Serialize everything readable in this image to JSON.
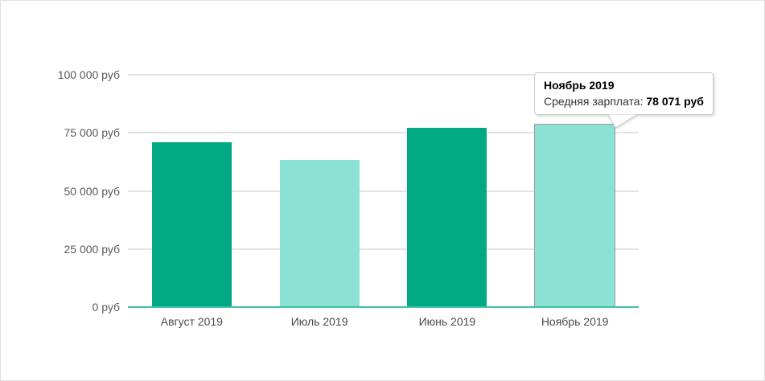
{
  "chart_data": {
    "type": "bar",
    "categories": [
      "Август 2019",
      "Июль 2019",
      "Июнь 2019",
      "Ноябрь 2019"
    ],
    "values": [
      70900,
      63300,
      77200,
      78071
    ],
    "title": "",
    "xlabel": "",
    "ylabel": "",
    "ylim": [
      0,
      100000
    ],
    "y_ticks": [
      "0 руб",
      "25 000 руб",
      "50 000 руб",
      "75 000 руб",
      "100 000 руб"
    ],
    "bar_colors": [
      "#00a884",
      "#8ae2d4",
      "#00a884",
      "#8ae2d4"
    ],
    "highlighted_index": 3,
    "grid": true,
    "legend": "none"
  },
  "tooltip": {
    "title": "Ноябрь 2019",
    "label": "Средняя зарплата: ",
    "value": "78 071 руб"
  },
  "colors": {
    "bar_dark": "#00a884",
    "bar_light": "#8ae2d4",
    "axis_line": "#3fbfa8",
    "gridline": "#e3e3e3",
    "highlight_border": "#9c9c9c",
    "tooltip_border": "#c9c9c9",
    "y_label_text": "#595959",
    "x_label_text": "#4a4a4a"
  }
}
